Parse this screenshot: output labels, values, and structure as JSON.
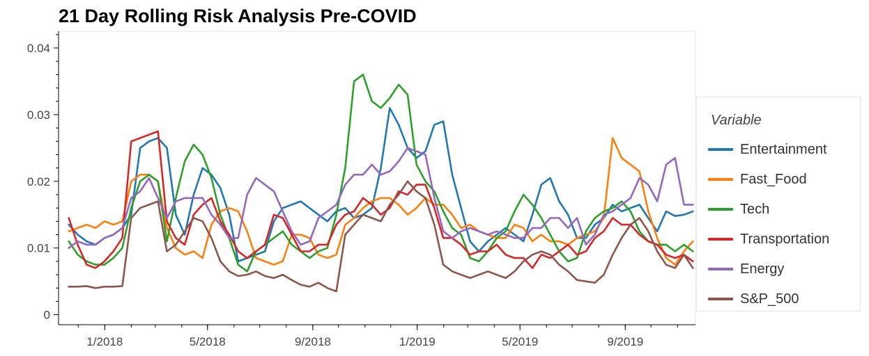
{
  "chart_data": {
    "type": "line",
    "title": "21 Day Rolling Risk Analysis Pre-COVID",
    "xlabel": "",
    "ylabel": "",
    "x_range": [
      "2017-11-20",
      "2019-11-19"
    ],
    "xlim": [
      "2017-11-08",
      "2019-11-22"
    ],
    "ylim": [
      -0.0015,
      0.0425
    ],
    "x_ticks": [
      "2018-01-01",
      "2018-05-01",
      "2018-09-01",
      "2019-01-01",
      "2019-05-01",
      "2019-09-01"
    ],
    "x_tick_labels": [
      "1/2018",
      "5/2018",
      "9/2018",
      "1/2019",
      "5/2019",
      "9/2019"
    ],
    "y_ticks": [
      0,
      0.01,
      0.02,
      0.03,
      0.04
    ],
    "y_tick_labels": [
      "0",
      "0.01",
      "0.02",
      "0.03",
      "0.04"
    ],
    "grid": false,
    "legend_title": "Variable",
    "legend_position": "right",
    "series": [
      {
        "name": "Entertainment",
        "color": "#1f77b4",
        "values": [
          0.0135,
          0.012,
          0.011,
          0.0105,
          0.0115,
          0.012,
          0.013,
          0.015,
          0.025,
          0.026,
          0.0265,
          0.025,
          0.015,
          0.012,
          0.018,
          0.022,
          0.021,
          0.019,
          0.015,
          0.008,
          0.0085,
          0.009,
          0.0095,
          0.014,
          0.016,
          0.0165,
          0.017,
          0.016,
          0.015,
          0.014,
          0.0155,
          0.016,
          0.0145,
          0.015,
          0.016,
          0.022,
          0.031,
          0.0285,
          0.025,
          0.0235,
          0.0245,
          0.0285,
          0.029,
          0.021,
          0.016,
          0.011,
          0.0095,
          0.011,
          0.012,
          0.013,
          0.012,
          0.011,
          0.015,
          0.0195,
          0.0205,
          0.017,
          0.015,
          0.0115,
          0.0115,
          0.0135,
          0.0145,
          0.0165,
          0.0155,
          0.016,
          0.0165,
          0.0145,
          0.0125,
          0.0155,
          0.0148,
          0.015,
          0.0155
        ]
      },
      {
        "name": "Fast_Food",
        "color": "#ff7f0e",
        "values": [
          0.0125,
          0.013,
          0.0135,
          0.013,
          0.014,
          0.0135,
          0.014,
          0.02,
          0.021,
          0.021,
          0.02,
          0.013,
          0.01,
          0.009,
          0.0095,
          0.0085,
          0.0135,
          0.0155,
          0.016,
          0.0155,
          0.0125,
          0.0085,
          0.008,
          0.0075,
          0.008,
          0.012,
          0.012,
          0.0115,
          0.009,
          0.0085,
          0.009,
          0.0135,
          0.0145,
          0.016,
          0.017,
          0.0175,
          0.0175,
          0.0165,
          0.015,
          0.016,
          0.0175,
          0.0165,
          0.0165,
          0.015,
          0.013,
          0.0135,
          0.0125,
          0.012,
          0.0115,
          0.0115,
          0.0135,
          0.013,
          0.011,
          0.012,
          0.011,
          0.011,
          0.0105,
          0.0115,
          0.012,
          0.0125,
          0.0145,
          0.0265,
          0.0235,
          0.0225,
          0.0215,
          0.0155,
          0.0115,
          0.0085,
          0.0075,
          0.0095,
          0.011
        ]
      },
      {
        "name": "Tech",
        "color": "#2ca02c",
        "values": [
          0.011,
          0.009,
          0.008,
          0.0075,
          0.0075,
          0.0085,
          0.01,
          0.016,
          0.02,
          0.021,
          0.02,
          0.011,
          0.0175,
          0.023,
          0.0255,
          0.024,
          0.0205,
          0.015,
          0.0115,
          0.0075,
          0.0065,
          0.0095,
          0.0105,
          0.0115,
          0.0125,
          0.0105,
          0.0095,
          0.0085,
          0.0095,
          0.01,
          0.015,
          0.022,
          0.035,
          0.036,
          0.032,
          0.031,
          0.0325,
          0.0345,
          0.033,
          0.0225,
          0.02,
          0.0185,
          0.0155,
          0.013,
          0.012,
          0.0085,
          0.008,
          0.0095,
          0.0115,
          0.0125,
          0.0155,
          0.018,
          0.0165,
          0.0145,
          0.012,
          0.0095,
          0.008,
          0.0085,
          0.0125,
          0.0145,
          0.0155,
          0.016,
          0.017,
          0.0155,
          0.0125,
          0.011,
          0.0105,
          0.0105,
          0.0095,
          0.0105,
          0.0095
        ]
      },
      {
        "name": "Transportation",
        "color": "#d62728",
        "values": [
          0.0145,
          0.0105,
          0.0075,
          0.007,
          0.008,
          0.0095,
          0.0115,
          0.026,
          0.0265,
          0.027,
          0.0275,
          0.014,
          0.0115,
          0.0105,
          0.015,
          0.0165,
          0.0175,
          0.014,
          0.012,
          0.0095,
          0.0085,
          0.0095,
          0.0105,
          0.015,
          0.0145,
          0.012,
          0.0095,
          0.0095,
          0.0105,
          0.0105,
          0.0135,
          0.015,
          0.0155,
          0.0175,
          0.0165,
          0.015,
          0.016,
          0.0185,
          0.018,
          0.0195,
          0.0195,
          0.016,
          0.0115,
          0.0115,
          0.0105,
          0.009,
          0.0095,
          0.0095,
          0.0105,
          0.009,
          0.0085,
          0.0085,
          0.007,
          0.009,
          0.0085,
          0.0095,
          0.0105,
          0.009,
          0.0095,
          0.0115,
          0.0125,
          0.0145,
          0.0135,
          0.0135,
          0.012,
          0.011,
          0.0105,
          0.009,
          0.0085,
          0.009,
          0.008
        ]
      },
      {
        "name": "Energy",
        "color": "#9467bd",
        "values": [
          0.01,
          0.011,
          0.0105,
          0.0105,
          0.0115,
          0.012,
          0.013,
          0.0175,
          0.0185,
          0.0205,
          0.0175,
          0.0145,
          0.017,
          0.0175,
          0.0175,
          0.0175,
          0.015,
          0.0135,
          0.0115,
          0.0115,
          0.018,
          0.0205,
          0.0195,
          0.0185,
          0.0155,
          0.0125,
          0.0105,
          0.011,
          0.0145,
          0.0155,
          0.0165,
          0.0195,
          0.021,
          0.021,
          0.0225,
          0.021,
          0.0215,
          0.023,
          0.025,
          0.0245,
          0.024,
          0.0175,
          0.0125,
          0.0115,
          0.0125,
          0.013,
          0.0125,
          0.012,
          0.0125,
          0.012,
          0.0115,
          0.0115,
          0.013,
          0.013,
          0.0145,
          0.0145,
          0.013,
          0.0145,
          0.0105,
          0.012,
          0.015,
          0.0155,
          0.0165,
          0.0175,
          0.0205,
          0.0195,
          0.017,
          0.0225,
          0.0235,
          0.0165,
          0.0165
        ]
      },
      {
        "name": "S&P_500",
        "color": "#8c564b",
        "values": [
          0.0042,
          0.0042,
          0.0043,
          0.004,
          0.0042,
          0.0042,
          0.0043,
          0.0145,
          0.016,
          0.0165,
          0.017,
          0.0095,
          0.0105,
          0.0125,
          0.0145,
          0.014,
          0.0115,
          0.008,
          0.0065,
          0.0058,
          0.006,
          0.0065,
          0.0058,
          0.0055,
          0.006,
          0.0052,
          0.0045,
          0.0042,
          0.0048,
          0.004,
          0.0035,
          0.012,
          0.0135,
          0.015,
          0.0145,
          0.014,
          0.0165,
          0.018,
          0.02,
          0.0185,
          0.0175,
          0.0135,
          0.0075,
          0.0065,
          0.006,
          0.0055,
          0.006,
          0.0065,
          0.006,
          0.0055,
          0.0065,
          0.008,
          0.009,
          0.0095,
          0.009,
          0.0075,
          0.0065,
          0.0052,
          0.005,
          0.0048,
          0.006,
          0.009,
          0.0115,
          0.0135,
          0.0145,
          0.0125,
          0.0095,
          0.0075,
          0.007,
          0.009,
          0.007
        ]
      }
    ]
  }
}
